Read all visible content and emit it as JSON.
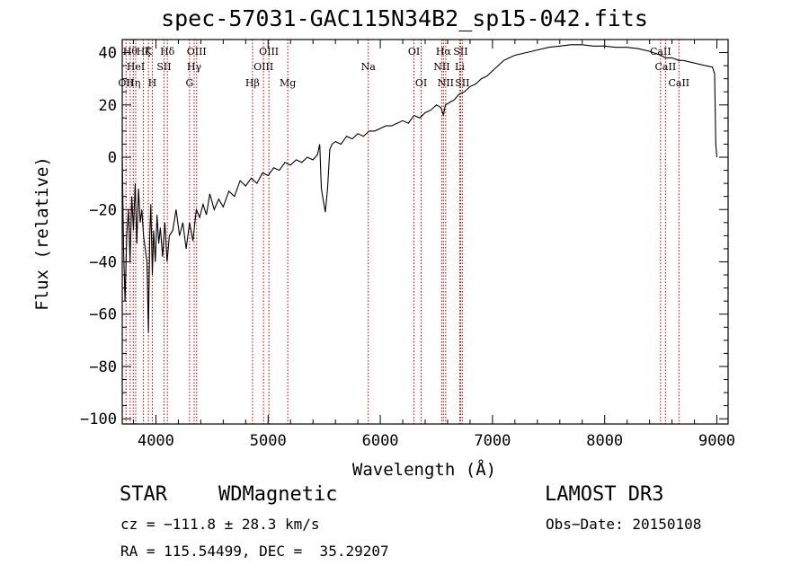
{
  "chart_data": {
    "type": "line",
    "title": "spec-57031-GAC115N34B2_sp15-042.fits",
    "xlabel": "Wavelength (Å)",
    "ylabel": "Flux (relative)",
    "xlim": [
      3700,
      9100
    ],
    "ylim": [
      -102,
      45
    ],
    "xticks": [
      4000,
      5000,
      6000,
      7000,
      8000,
      9000
    ],
    "yticks": [
      -100,
      -80,
      -60,
      -40,
      -20,
      0,
      20,
      40
    ],
    "spectrum_points": [
      [
        3700,
        0
      ],
      [
        3712,
        -35
      ],
      [
        3725,
        -55
      ],
      [
        3740,
        -30
      ],
      [
        3755,
        -20
      ],
      [
        3770,
        -40
      ],
      [
        3785,
        -15
      ],
      [
        3800,
        -28
      ],
      [
        3815,
        -10
      ],
      [
        3830,
        -33
      ],
      [
        3845,
        -12
      ],
      [
        3860,
        -25
      ],
      [
        3875,
        -20
      ],
      [
        3890,
        -30
      ],
      [
        3905,
        -35
      ],
      [
        3920,
        -40
      ],
      [
        3933,
        -67
      ],
      [
        3945,
        -30
      ],
      [
        3955,
        -18
      ],
      [
        3968,
        -45
      ],
      [
        3980,
        -28
      ],
      [
        3995,
        -40
      ],
      [
        4010,
        -22
      ],
      [
        4025,
        -33
      ],
      [
        4040,
        -27
      ],
      [
        4060,
        -38
      ],
      [
        4080,
        -25
      ],
      [
        4100,
        -40
      ],
      [
        4120,
        -30
      ],
      [
        4150,
        -28
      ],
      [
        4180,
        -20
      ],
      [
        4210,
        -30
      ],
      [
        4240,
        -25
      ],
      [
        4270,
        -35
      ],
      [
        4300,
        -25
      ],
      [
        4330,
        -32
      ],
      [
        4360,
        -20
      ],
      [
        4390,
        -23
      ],
      [
        4420,
        -18
      ],
      [
        4450,
        -22
      ],
      [
        4480,
        -14
      ],
      [
        4520,
        -20
      ],
      [
        4560,
        -16
      ],
      [
        4600,
        -19
      ],
      [
        4650,
        -13
      ],
      [
        4700,
        -15
      ],
      [
        4750,
        -9
      ],
      [
        4800,
        -11
      ],
      [
        4850,
        -8
      ],
      [
        4900,
        -10
      ],
      [
        4950,
        -6
      ],
      [
        5000,
        -7
      ],
      [
        5050,
        -4
      ],
      [
        5100,
        -5
      ],
      [
        5150,
        -2
      ],
      [
        5200,
        -3
      ],
      [
        5250,
        -1
      ],
      [
        5300,
        -2
      ],
      [
        5350,
        0
      ],
      [
        5400,
        -1
      ],
      [
        5440,
        1
      ],
      [
        5460,
        5
      ],
      [
        5475,
        -12
      ],
      [
        5490,
        -16
      ],
      [
        5510,
        -21
      ],
      [
        5530,
        -12
      ],
      [
        5550,
        3
      ],
      [
        5570,
        5
      ],
      [
        5600,
        6
      ],
      [
        5650,
        5
      ],
      [
        5700,
        8
      ],
      [
        5750,
        7
      ],
      [
        5800,
        9
      ],
      [
        5850,
        8
      ],
      [
        5900,
        10
      ],
      [
        5950,
        10
      ],
      [
        6000,
        11
      ],
      [
        6050,
        12
      ],
      [
        6100,
        12
      ],
      [
        6150,
        13
      ],
      [
        6200,
        14
      ],
      [
        6250,
        13
      ],
      [
        6300,
        16
      ],
      [
        6350,
        15
      ],
      [
        6400,
        17
      ],
      [
        6450,
        18
      ],
      [
        6500,
        20
      ],
      [
        6540,
        19
      ],
      [
        6563,
        16
      ],
      [
        6580,
        20
      ],
      [
        6620,
        21
      ],
      [
        6660,
        22
      ],
      [
        6700,
        24
      ],
      [
        6750,
        25
      ],
      [
        6800,
        27
      ],
      [
        6850,
        28
      ],
      [
        6900,
        30
      ],
      [
        6950,
        31
      ],
      [
        7000,
        33
      ],
      [
        7050,
        35
      ],
      [
        7100,
        37
      ],
      [
        7150,
        38
      ],
      [
        7200,
        39
      ],
      [
        7300,
        40
      ],
      [
        7400,
        41
      ],
      [
        7500,
        42
      ],
      [
        7600,
        42.5
      ],
      [
        7700,
        43
      ],
      [
        7800,
        43
      ],
      [
        7900,
        42.5
      ],
      [
        8000,
        42.5
      ],
      [
        8100,
        42
      ],
      [
        8200,
        42
      ],
      [
        8300,
        41.5
      ],
      [
        8400,
        40.5
      ],
      [
        8500,
        39
      ],
      [
        8542,
        38
      ],
      [
        8600,
        38
      ],
      [
        8662,
        37
      ],
      [
        8700,
        37
      ],
      [
        8800,
        36
      ],
      [
        8900,
        35
      ],
      [
        8960,
        34.5
      ],
      [
        8980,
        32
      ],
      [
        8990,
        5
      ],
      [
        9000,
        0
      ]
    ],
    "line_markers": [
      {
        "wavelength": 3734,
        "label": "OII",
        "row": 3
      },
      {
        "wavelength": 3771,
        "label": "Hθ",
        "row": 1
      },
      {
        "wavelength": 3798,
        "label": "Hη",
        "row": 3
      },
      {
        "wavelength": 3820,
        "label": "HeI",
        "row": 2
      },
      {
        "wavelength": 3889,
        "label": "Hζ",
        "row": 1
      },
      {
        "wavelength": 3933,
        "label": "K",
        "row": 1
      },
      {
        "wavelength": 3968,
        "label": "H",
        "row": 3
      },
      {
        "wavelength": 4072,
        "label": "SII",
        "row": 2
      },
      {
        "wavelength": 4102,
        "label": "Hδ",
        "row": 1
      },
      {
        "wavelength": 4300,
        "label": "G",
        "row": 3
      },
      {
        "wavelength": 4341,
        "label": "Hγ",
        "row": 2
      },
      {
        "wavelength": 4363,
        "label": "OIII",
        "row": 1
      },
      {
        "wavelength": 4861,
        "label": "Hβ",
        "row": 3
      },
      {
        "wavelength": 4959,
        "label": "OIII",
        "row": 2
      },
      {
        "wavelength": 5007,
        "label": "OIII",
        "row": 1
      },
      {
        "wavelength": 5175,
        "label": "Mg",
        "row": 3
      },
      {
        "wavelength": 5893,
        "label": "Na",
        "row": 2
      },
      {
        "wavelength": 6300,
        "label": "OI",
        "row": 1
      },
      {
        "wavelength": 6364,
        "label": "OI",
        "row": 3
      },
      {
        "wavelength": 6548,
        "label": "NII",
        "row": 2
      },
      {
        "wavelength": 6563,
        "label": "Hα",
        "row": 1
      },
      {
        "wavelength": 6583,
        "label": "NII",
        "row": 3
      },
      {
        "wavelength": 6708,
        "label": "Li",
        "row": 2
      },
      {
        "wavelength": 6716,
        "label": "SII",
        "row": 1
      },
      {
        "wavelength": 6731,
        "label": "SII",
        "row": 3
      },
      {
        "wavelength": 8498,
        "label": "CaII",
        "row": 1
      },
      {
        "wavelength": 8542,
        "label": "CaII",
        "row": 2
      },
      {
        "wavelength": 8662,
        "label": "CaII",
        "row": 3
      }
    ]
  },
  "info": {
    "class": "STAR",
    "subclass": "WDMagnetic",
    "survey": "LAMOST DR3",
    "cz": "cz = −111.8 ± 28.3 km/s",
    "obs_date": "Obs−Date: 20150108",
    "coords": "RA = 115.54499, DEC =  35.29207"
  },
  "colors": {
    "spectrum": "#000000",
    "marker": "#c00000",
    "axis": "#000000"
  }
}
